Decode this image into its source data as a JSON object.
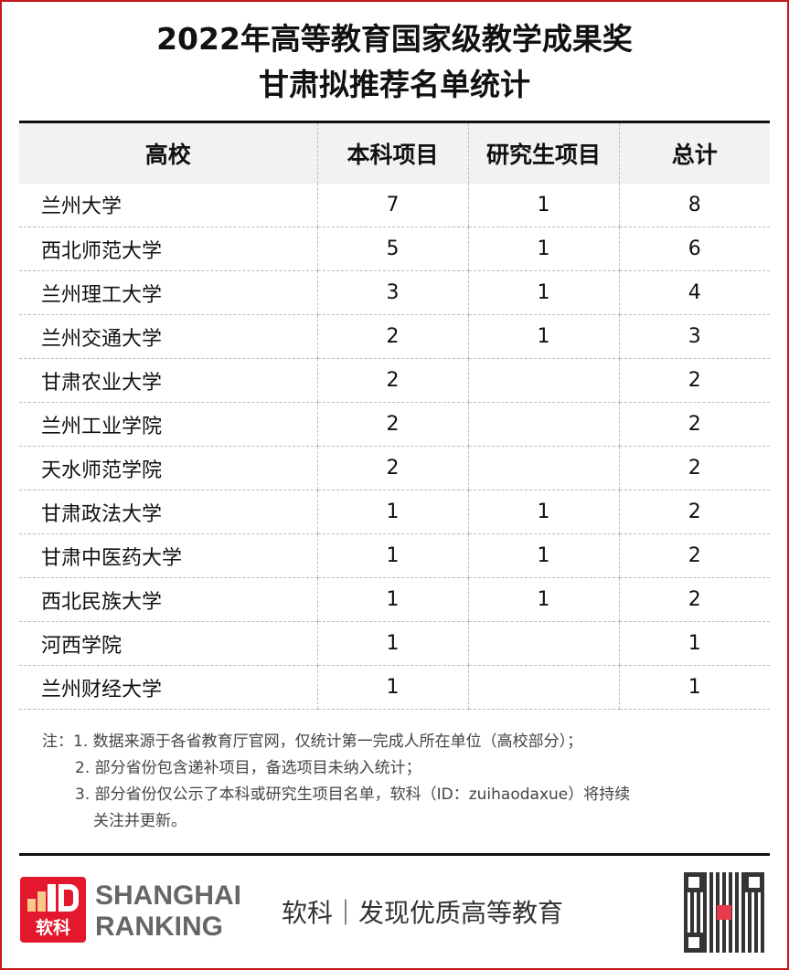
{
  "title": {
    "line1": "2022年高等教育国家级教学成果奖",
    "line2": "甘肃拟推荐名单统计"
  },
  "table": {
    "headers": [
      "高校",
      "本科项目",
      "研究生项目",
      "总计"
    ],
    "rows": [
      [
        "兰州大学",
        "7",
        "1",
        "8"
      ],
      [
        "西北师范大学",
        "5",
        "1",
        "6"
      ],
      [
        "兰州理工大学",
        "3",
        "1",
        "4"
      ],
      [
        "兰州交通大学",
        "2",
        "1",
        "3"
      ],
      [
        "甘肃农业大学",
        "2",
        "",
        "2"
      ],
      [
        "兰州工业学院",
        "2",
        "",
        "2"
      ],
      [
        "天水师范学院",
        "2",
        "",
        "2"
      ],
      [
        "甘肃政法大学",
        "1",
        "1",
        "2"
      ],
      [
        "甘肃中医药大学",
        "1",
        "1",
        "2"
      ],
      [
        "西北民族大学",
        "1",
        "1",
        "2"
      ],
      [
        "河西学院",
        "1",
        "",
        "1"
      ],
      [
        "兰州财经大学",
        "1",
        "",
        "1"
      ]
    ]
  },
  "notes": {
    "prefix": "注：",
    "items": [
      "1. 数据来源于各省教育厅官网，仅统计第一完成人所在单位（高校部分）；",
      "2. 部分省份包含递补项目，备选项目未纳入统计；",
      "3. 部分省份仅公示了本科或研究生项目名单，软科（ID：zuihaodaxue）将持续",
      "关注并更新。"
    ]
  },
  "footer": {
    "logo_text": "软科",
    "brand_line1": "SHANGHAI",
    "brand_line2": "RANKING",
    "slogan": "软科｜发现优质高等教育"
  },
  "colors": {
    "accent": "#e3182d",
    "border": "#c8161d",
    "header_bg": "#f2f2f2"
  }
}
